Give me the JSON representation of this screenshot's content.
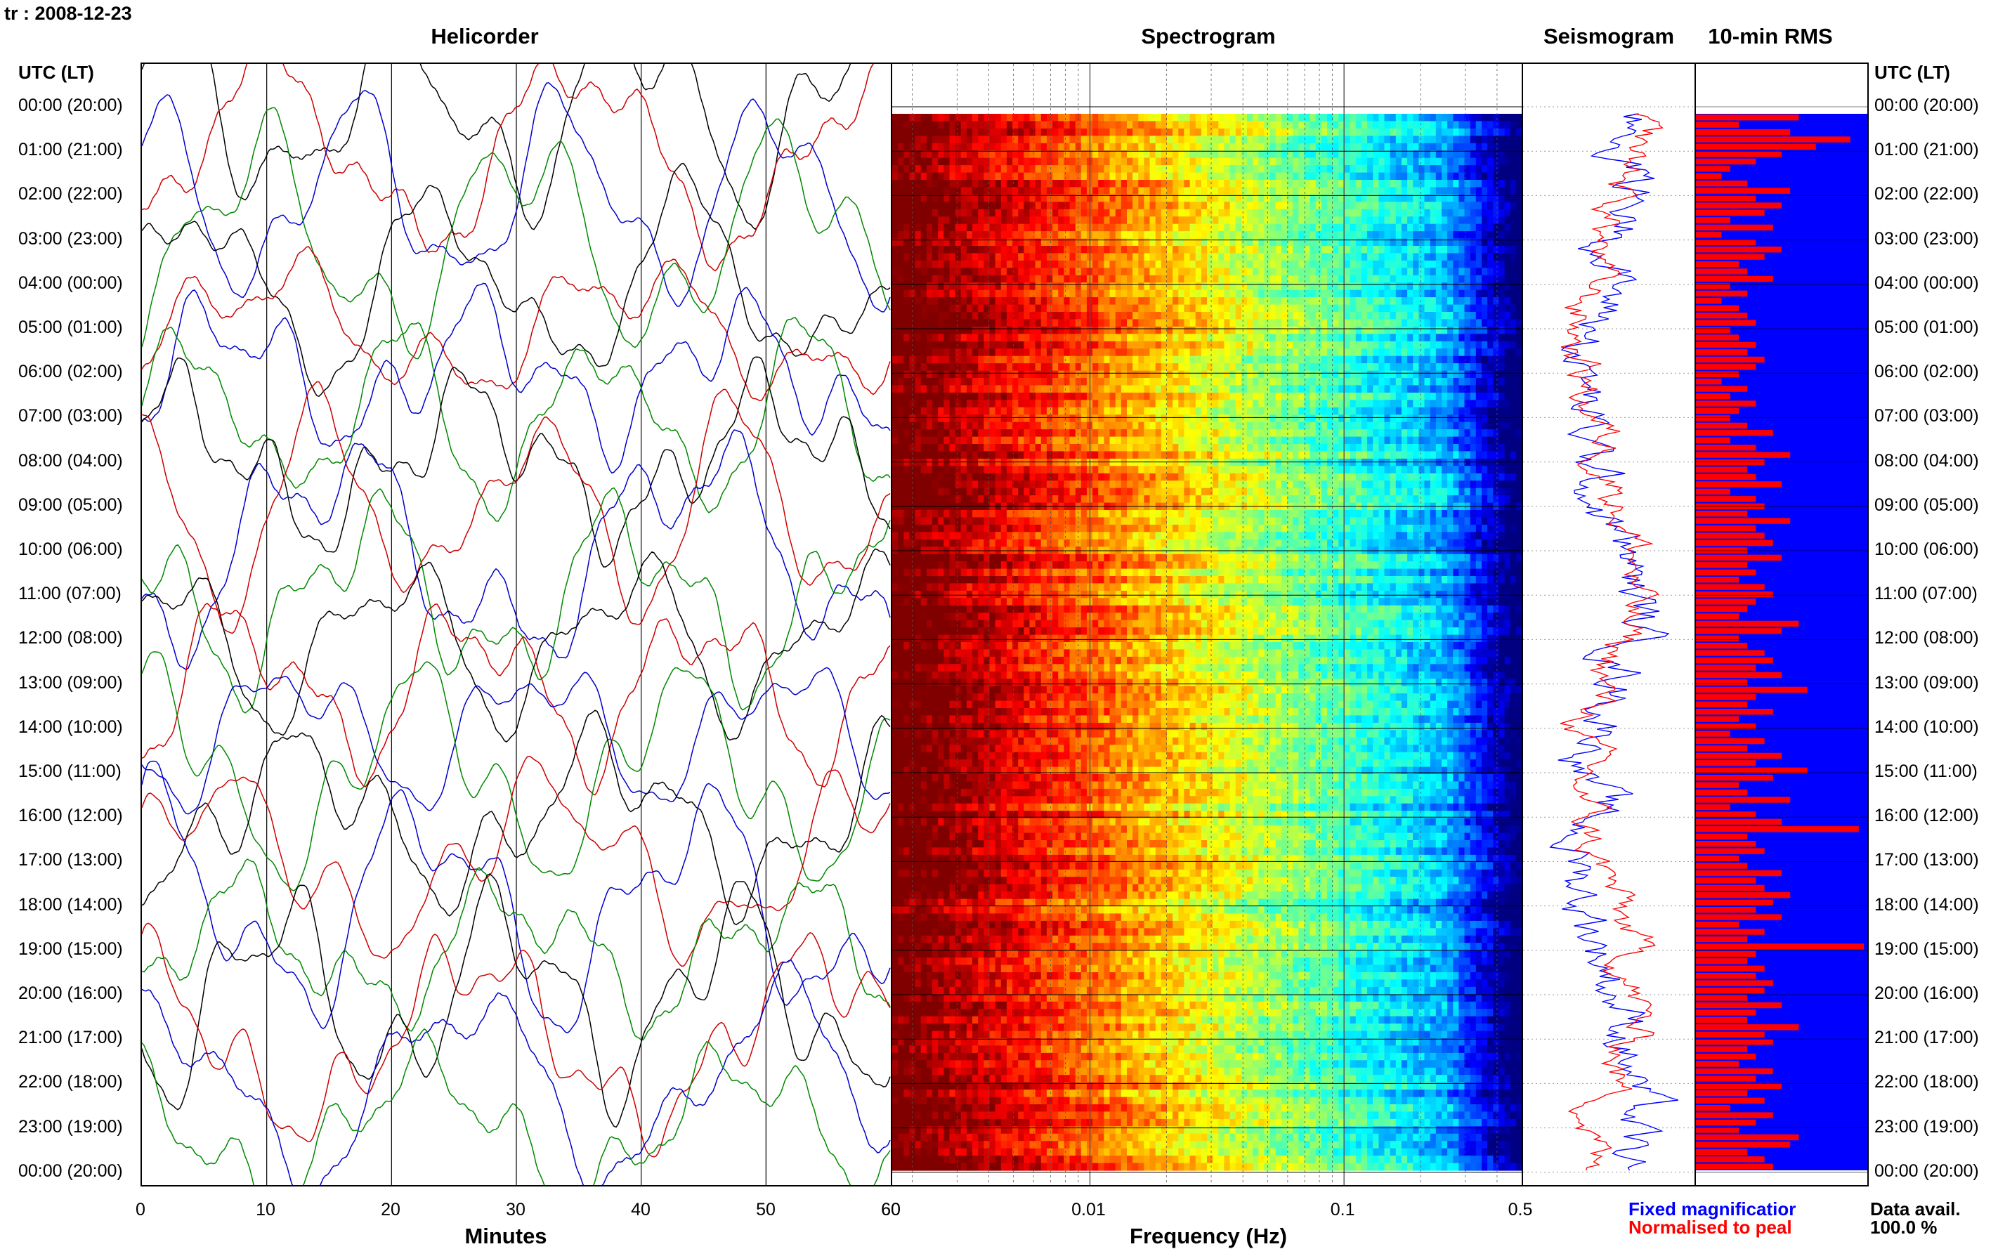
{
  "station_label": "tr : 2008-12-23",
  "panels": {
    "helicorder": "Helicorder",
    "spectrogram": "Spectrogram",
    "seismogram": "Seismogram",
    "rms": "10-min RMS"
  },
  "y_axis_header": "UTC (LT)",
  "hour_labels": [
    "00:00 (20:00)",
    "01:00 (21:00)",
    "02:00 (22:00)",
    "03:00 (23:00)",
    "04:00 (00:00)",
    "05:00 (01:00)",
    "06:00 (02:00)",
    "07:00 (03:00)",
    "08:00 (04:00)",
    "09:00 (05:00)",
    "10:00 (06:00)",
    "11:00 (07:00)",
    "12:00 (08:00)",
    "13:00 (09:00)",
    "14:00 (10:00)",
    "15:00 (11:00)",
    "16:00 (12:00)",
    "17:00 (13:00)",
    "18:00 (14:00)",
    "19:00 (15:00)",
    "20:00 (16:00)",
    "21:00 (17:00)",
    "22:00 (18:00)",
    "23:00 (19:00)",
    "00:00 (20:00)"
  ],
  "helicorder_x": {
    "label": "Minutes",
    "ticks": [
      0,
      10,
      20,
      30,
      40,
      50,
      60
    ],
    "range": [
      0,
      60
    ]
  },
  "spectrogram_x": {
    "label": "Frequency (Hz)",
    "scale": "log",
    "tick_values": [
      0.01,
      0.1,
      0.5
    ],
    "tick_labels": [
      "0.01",
      "0.1",
      "0.5"
    ],
    "range": [
      0.001667,
      0.5
    ]
  },
  "seismogram_legend": {
    "fixed": "Fixed magnificatior",
    "normalised": "Normalised to peal",
    "fixed_color": "#0000ff",
    "normalised_color": "#ff0000"
  },
  "data_availability": {
    "label": "Data avail.",
    "value": "100.0 %"
  },
  "colors": {
    "trace_cycle": [
      "#000000",
      "#cc0000",
      "#0000cc",
      "#008800"
    ],
    "rms_background": "#0000ff",
    "rms_bar": "#ff0000",
    "spectrogram_colormap": "jet"
  },
  "chart_data": [
    {
      "type": "line",
      "title": "Helicorder",
      "xlabel": "Minutes",
      "xlim": [
        0,
        60
      ],
      "rows": 24,
      "grid": "vertical lines every 10 min"
    },
    {
      "type": "heatmap",
      "title": "Spectrogram",
      "xlabel": "Frequency (Hz)",
      "xscale": "log",
      "xlim": [
        0.001667,
        0.5
      ],
      "colormap": "jet",
      "pattern": "high power (dark red) below ~0.005 Hz, decreasing through yellow near 0.02 Hz to cyan/blue above 0.1 Hz"
    },
    {
      "type": "line",
      "title": "Seismogram",
      "series": [
        {
          "name": "Fixed magnificatior"
        },
        {
          "name": "Normalised to peal"
        }
      ]
    },
    {
      "type": "bar",
      "title": "10-min RMS",
      "orientation": "horizontal",
      "bins": 144,
      "relative_values": [
        0.6,
        0.25,
        0.55,
        0.9,
        0.7,
        0.5,
        0.35,
        0.2,
        0.15,
        0.3,
        0.55,
        0.35,
        0.5,
        0.4,
        0.2,
        0.45,
        0.15,
        0.35,
        0.5,
        0.4,
        0.25,
        0.3,
        0.45,
        0.2,
        0.3,
        0.15,
        0.25,
        0.3,
        0.35,
        0.2,
        0.25,
        0.35,
        0.3,
        0.4,
        0.35,
        0.25,
        0.15,
        0.3,
        0.2,
        0.35,
        0.25,
        0.2,
        0.3,
        0.45,
        0.2,
        0.35,
        0.55,
        0.4,
        0.3,
        0.35,
        0.5,
        0.2,
        0.35,
        0.4,
        0.3,
        0.55,
        0.35,
        0.4,
        0.45,
        0.3,
        0.5,
        0.3,
        0.35,
        0.25,
        0.4,
        0.45,
        0.35,
        0.3,
        0.25,
        0.6,
        0.5,
        0.25,
        0.3,
        0.4,
        0.45,
        0.35,
        0.5,
        0.3,
        0.65,
        0.35,
        0.3,
        0.45,
        0.25,
        0.35,
        0.2,
        0.4,
        0.3,
        0.5,
        0.35,
        0.65,
        0.45,
        0.25,
        0.3,
        0.55,
        0.2,
        0.35,
        0.5,
        0.95,
        0.3,
        0.35,
        0.4,
        0.25,
        0.3,
        0.5,
        0.35,
        0.4,
        0.55,
        0.45,
        0.35,
        0.5,
        0.25,
        0.4,
        0.3,
        0.98,
        0.35,
        0.3,
        0.4,
        0.35,
        0.45,
        0.4,
        0.3,
        0.5,
        0.35,
        0.3,
        0.6,
        0.4,
        0.45,
        0.3,
        0.35,
        0.25,
        0.45,
        0.35,
        0.5,
        0.3,
        0.4,
        0.2,
        0.45,
        0.35,
        0.25,
        0.6,
        0.55,
        0.3,
        0.4,
        0.45
      ]
    }
  ]
}
